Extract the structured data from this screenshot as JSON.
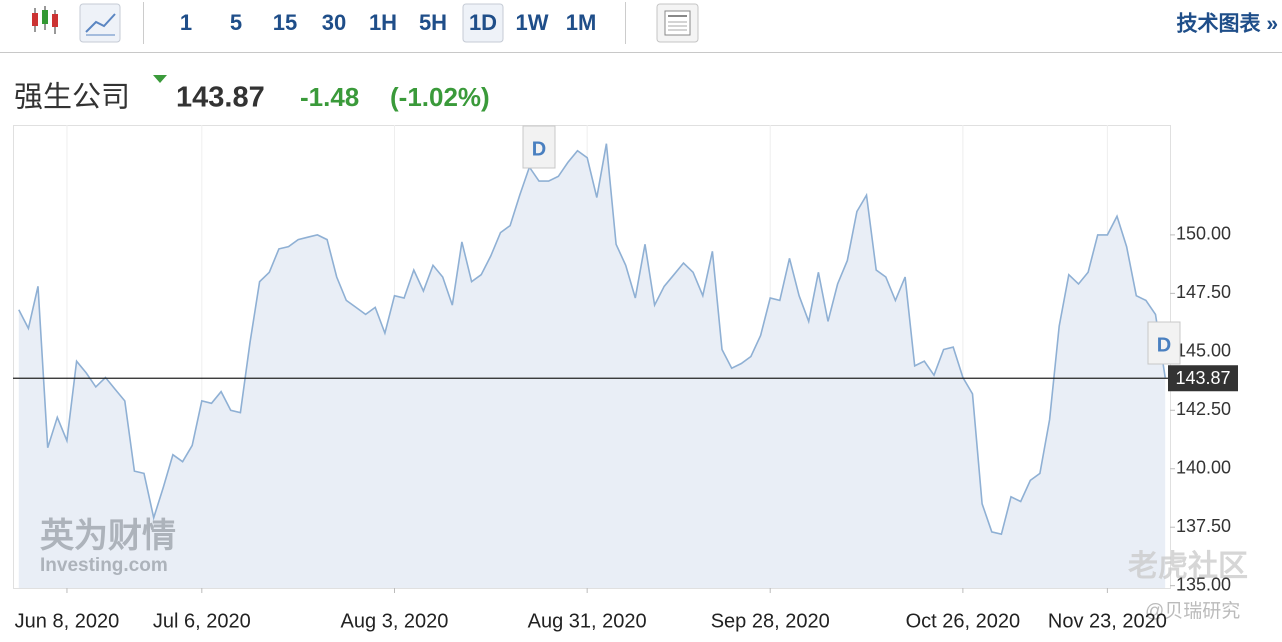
{
  "toolbar": {
    "intervals": [
      "1",
      "5",
      "15",
      "30",
      "1H",
      "5H",
      "1D",
      "1W",
      "1M"
    ],
    "active": "1D",
    "link": "技术图表 »"
  },
  "chart_data": {
    "type": "area",
    "title": "强生公司",
    "last_price": 143.87,
    "change": -1.48,
    "change_percent": "(-1.02%)",
    "values": [
      146.8,
      146.0,
      147.8,
      140.9,
      142.2,
      141.2,
      144.6,
      144.1,
      143.5,
      143.9,
      143.4,
      142.9,
      139.9,
      139.8,
      137.9,
      139.2,
      140.6,
      140.3,
      141.0,
      142.9,
      142.8,
      143.3,
      142.5,
      142.4,
      145.4,
      148.0,
      148.4,
      149.4,
      149.5,
      149.8,
      149.9,
      150.0,
      149.8,
      148.2,
      147.2,
      146.9,
      146.6,
      146.9,
      145.8,
      147.4,
      147.3,
      148.5,
      147.6,
      148.7,
      148.2,
      147.0,
      149.7,
      148.0,
      148.3,
      149.1,
      150.1,
      150.4,
      151.7,
      152.9,
      152.3,
      152.3,
      152.5,
      153.1,
      153.6,
      153.3,
      151.6,
      153.9,
      149.6,
      148.7,
      147.3,
      149.6,
      147.0,
      147.8,
      148.3,
      148.8,
      148.4,
      147.4,
      149.3,
      145.1,
      144.3,
      144.5,
      144.8,
      145.7,
      147.3,
      147.2,
      149.0,
      147.4,
      146.3,
      148.4,
      146.3,
      147.9,
      148.9,
      151.0,
      151.7,
      148.5,
      148.2,
      147.2,
      148.2,
      144.4,
      144.6,
      144.0,
      145.1,
      145.2,
      143.9,
      143.2,
      138.5,
      137.3,
      137.2,
      138.8,
      138.6,
      139.5,
      139.8,
      142.1,
      146.1,
      148.3,
      147.9,
      148.4,
      150.0,
      150.0,
      150.8,
      149.5,
      147.4,
      147.2,
      146.6,
      143.9
    ],
    "color": "#8fb0d4",
    "fill": "#e9eef6",
    "xlim": [
      -0.6,
      119.5
    ],
    "xticks": [
      {
        "value": 5,
        "label": "Jun 8, 2020"
      },
      {
        "value": 19,
        "label": "Jul 6, 2020"
      },
      {
        "value": 39,
        "label": "Aug 3, 2020"
      },
      {
        "value": 59,
        "label": "Aug 31, 2020"
      },
      {
        "value": 78,
        "label": "Sep 28, 2020"
      },
      {
        "value": 98,
        "label": "Oct 26, 2020"
      },
      {
        "value": 113,
        "label": "Nov 23, 2020"
      }
    ],
    "ylim": [
      134.9,
      154.7
    ],
    "yticks": [
      {
        "value": 135,
        "label": "135.00"
      },
      {
        "value": 137.5,
        "label": "137.50"
      },
      {
        "value": 140,
        "label": "140.00"
      },
      {
        "value": 142.5,
        "label": "142.50"
      },
      {
        "value": 145,
        "label": "145.00"
      },
      {
        "value": 147.5,
        "label": "147.50"
      },
      {
        "value": 150,
        "label": "150.00"
      }
    ],
    "grid": true,
    "annotations": [
      "D",
      "D"
    ],
    "watermarks": [
      "英为财情",
      "Investing.com",
      "老虎社区",
      "@贝瑞研究"
    ]
  }
}
